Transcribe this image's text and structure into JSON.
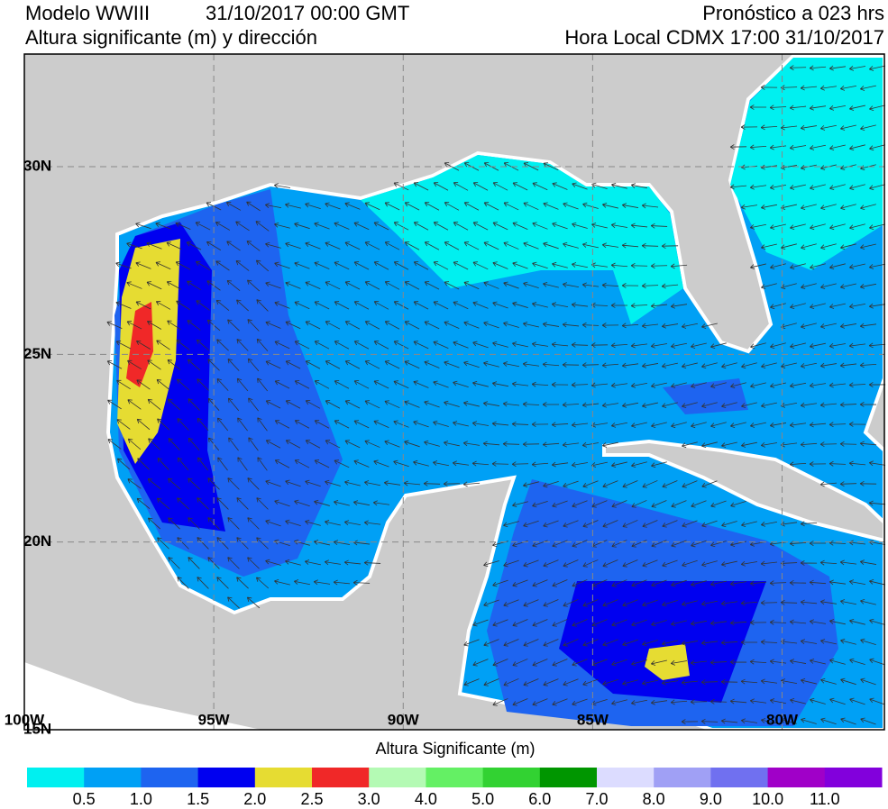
{
  "header": {
    "model": "Modelo WWIII",
    "date": "31/10/2017 00:00 GMT",
    "subtitle": "Altura significante (m) y dirección",
    "forecast": "Pronóstico a 023 hrs",
    "local_time": "Hora Local CDMX 17:00 31/10/2017"
  },
  "map": {
    "lon_range": [
      -100,
      -77.3
    ],
    "lat_range": [
      15,
      33
    ],
    "lat_labels": [
      {
        "value": 30,
        "label": "30N"
      },
      {
        "value": 25,
        "label": "25N"
      },
      {
        "value": 20,
        "label": "20N"
      },
      {
        "value": 15,
        "label": "15N"
      }
    ],
    "lon_labels": [
      {
        "value": -100,
        "label": "100W"
      },
      {
        "value": -95,
        "label": "95W"
      },
      {
        "value": -90,
        "label": "90W"
      },
      {
        "value": -85,
        "label": "85W"
      },
      {
        "value": -80,
        "label": "80W"
      }
    ]
  },
  "legend": {
    "title": "Altura Significante (m)",
    "colors": [
      "#00f0f0",
      "#00a0f5",
      "#1e64f0",
      "#0000f0",
      "#e6dc32",
      "#f02828",
      "#b4fab4",
      "#64f064",
      "#32d232",
      "#009600",
      "#dcdcff",
      "#a0a0f5",
      "#7070f0",
      "#a000c8",
      "#8200dc"
    ],
    "labels": [
      "0.5",
      "1.0",
      "1.5",
      "2.0",
      "2.5",
      "3.0",
      "4.0",
      "5.0",
      "6.0",
      "7.0",
      "8.0",
      "9.0",
      "10.0",
      "11.0"
    ]
  }
}
